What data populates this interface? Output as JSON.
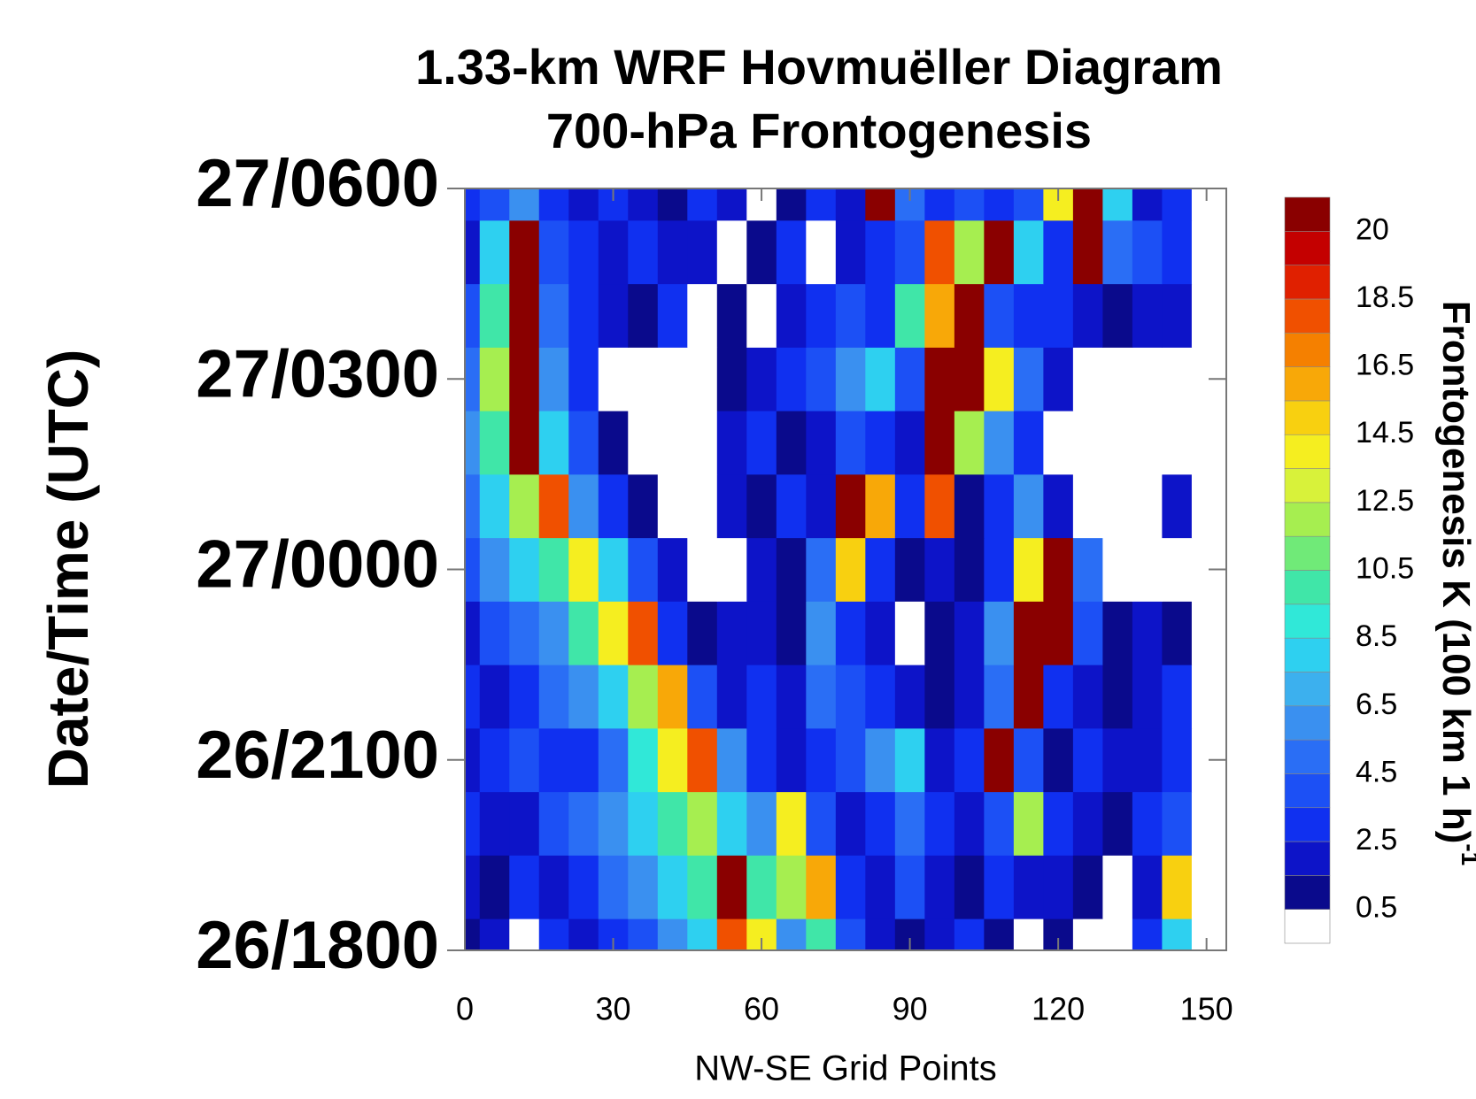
{
  "chart_data": {
    "type": "heatmap",
    "title": "1.33-km WRF Hovmuëller Diagram",
    "subtitle": "700-hPa Frontogenesis",
    "x_label": "NW-SE Grid Points",
    "y_label": "Date/Time (UTC)",
    "colorbar_label": "Frontogenesis K (100 km 1 h)",
    "colorbar_label_superscript": "-1",
    "xlim": [
      0,
      154
    ],
    "xticks": [
      0,
      30,
      60,
      90,
      120,
      150
    ],
    "ylim": [
      0,
      12
    ],
    "yticks": [
      {
        "value": 0,
        "label": "26/1800"
      },
      {
        "value": 3,
        "label": "26/2100"
      },
      {
        "value": 6,
        "label": "27/0000"
      },
      {
        "value": 9,
        "label": "27/0300"
      },
      {
        "value": 12,
        "label": "27/0600"
      }
    ],
    "x": [
      0,
      6,
      12,
      18,
      24,
      30,
      36,
      42,
      48,
      54,
      60,
      66,
      72,
      78,
      84,
      90,
      96,
      102,
      108,
      114,
      120,
      126,
      132,
      138,
      144,
      150
    ],
    "y": [
      0,
      1,
      2,
      3,
      4,
      5,
      6,
      7,
      8,
      9,
      10,
      11,
      12
    ],
    "z": [
      [
        1,
        2,
        0,
        3,
        2,
        3,
        4,
        6,
        8,
        18,
        14,
        6,
        10,
        4,
        2,
        1,
        2,
        3,
        1,
        0,
        1,
        0,
        0,
        3,
        8,
        0
      ],
      [
        2,
        1,
        3,
        2,
        3,
        5,
        6,
        8,
        10,
        20,
        10,
        12,
        16,
        3,
        2,
        4,
        2,
        1,
        3,
        2,
        2,
        1,
        0,
        2,
        15,
        0
      ],
      [
        3,
        2,
        2,
        4,
        5,
        6,
        8,
        10,
        12,
        8,
        6,
        14,
        4,
        2,
        3,
        5,
        3,
        2,
        4,
        12,
        3,
        2,
        1,
        3,
        4,
        0
      ],
      [
        2,
        3,
        4,
        3,
        3,
        5,
        9,
        14,
        18,
        6,
        3,
        2,
        3,
        4,
        6,
        8,
        2,
        3,
        21,
        4,
        1,
        3,
        2,
        2,
        3,
        0
      ],
      [
        3,
        2,
        3,
        5,
        6,
        8,
        12,
        16,
        4,
        2,
        3,
        2,
        5,
        4,
        3,
        2,
        1,
        2,
        5,
        21,
        3,
        2,
        1,
        2,
        3,
        0
      ],
      [
        2,
        4,
        5,
        6,
        10,
        14,
        18,
        3,
        1,
        2,
        2,
        1,
        6,
        3,
        2,
        0,
        1,
        2,
        6,
        21,
        21,
        4,
        1,
        2,
        1,
        0
      ],
      [
        4,
        6,
        8,
        10,
        14,
        8,
        4,
        2,
        0,
        0,
        2,
        1,
        5,
        15,
        3,
        1,
        2,
        1,
        3,
        14,
        21,
        5,
        0,
        0,
        0,
        0
      ],
      [
        5,
        8,
        12,
        18,
        6,
        3,
        1,
        0,
        0,
        2,
        1,
        3,
        2,
        21,
        16,
        3,
        18,
        1,
        3,
        6,
        2,
        0,
        0,
        0,
        2,
        0
      ],
      [
        6,
        10,
        21,
        8,
        4,
        1,
        0,
        0,
        0,
        2,
        3,
        1,
        2,
        4,
        3,
        2,
        21,
        12,
        6,
        3,
        0,
        0,
        0,
        0,
        0,
        0
      ],
      [
        5,
        12,
        21,
        6,
        3,
        0,
        0,
        0,
        0,
        1,
        2,
        3,
        4,
        6,
        8,
        4,
        21,
        21,
        14,
        5,
        2,
        0,
        0,
        0,
        0,
        0
      ],
      [
        4,
        10,
        21,
        5,
        3,
        2,
        1,
        3,
        0,
        1,
        0,
        2,
        3,
        4,
        3,
        10,
        16,
        21,
        4,
        3,
        3,
        2,
        1,
        2,
        2,
        0
      ],
      [
        2,
        8,
        21,
        4,
        3,
        2,
        3,
        2,
        2,
        0,
        1,
        3,
        0,
        2,
        3,
        4,
        18,
        12,
        21,
        8,
        3,
        21,
        5,
        4,
        3,
        0
      ],
      [
        3,
        4,
        6,
        3,
        2,
        3,
        2,
        1,
        3,
        2,
        0,
        1,
        3,
        2,
        21,
        5,
        3,
        4,
        3,
        4,
        14,
        21,
        8,
        2,
        3,
        0
      ]
    ],
    "levels": [
      0.5,
      1.5,
      2.5,
      3.5,
      4.5,
      5.5,
      6.5,
      7.5,
      8.5,
      9.5,
      10.5,
      11.5,
      12.5,
      13.5,
      14.5,
      15.5,
      16.5,
      17.5,
      18.5,
      19.5,
      20
    ],
    "colorbar_ticks": [
      0.5,
      2.5,
      4.5,
      6.5,
      8.5,
      10.5,
      12.5,
      14.5,
      16.5,
      18.5,
      20
    ],
    "colors": [
      "#ffffff",
      "#0a0a8c",
      "#0d14c8",
      "#1030f0",
      "#1c50f5",
      "#2a6ef5",
      "#3a90f0",
      "#3cb0ee",
      "#2ed0f0",
      "#30e8d8",
      "#40e6a8",
      "#70ea78",
      "#a6ee50",
      "#d8f23a",
      "#f5ee20",
      "#f8d010",
      "#f8a808",
      "#f58000",
      "#f05000",
      "#e02000",
      "#c40000",
      "#8a0000"
    ]
  }
}
